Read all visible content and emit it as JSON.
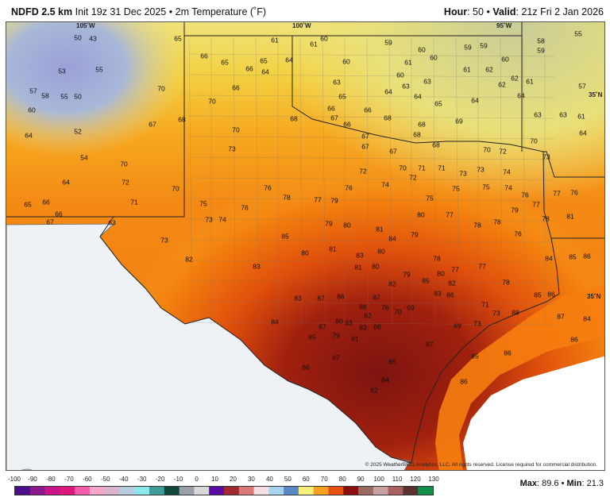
{
  "header": {
    "model": "NDFD 2.5 km",
    "init": "Init 19z 31 Dec 2025",
    "sep": "•",
    "field": "2m Temperature (˚F)",
    "hour_label": "Hour",
    "hour": "50",
    "valid_label": "Valid",
    "valid": "21z Fri 2 Jan 2026"
  },
  "map": {
    "longitude_labels": [
      "105˚W",
      "100˚W",
      "95˚W"
    ],
    "latitude_labels": [
      "35˚N",
      "35˚N"
    ],
    "temperature_labels": [
      "50",
      "43",
      "53",
      "55",
      "57",
      "58",
      "55",
      "50",
      "60",
      "52",
      "64",
      "54",
      "64",
      "65",
      "66",
      "66",
      "67",
      "63",
      "70",
      "72",
      "71",
      "70",
      "67",
      "68",
      "70",
      "65",
      "66",
      "65",
      "66",
      "65",
      "64",
      "64",
      "61",
      "61",
      "60",
      "59",
      "66",
      "70",
      "70",
      "73",
      "68",
      "63",
      "65",
      "60",
      "61",
      "60",
      "63",
      "63",
      "60",
      "60",
      "59",
      "59",
      "58",
      "59",
      "55",
      "60",
      "61",
      "62",
      "62",
      "62",
      "61",
      "57",
      "64",
      "64",
      "63",
      "63",
      "61",
      "64",
      "65",
      "64",
      "64",
      "66",
      "66",
      "67",
      "66",
      "68",
      "69",
      "68",
      "67",
      "67",
      "67",
      "68",
      "68",
      "70",
      "72",
      "70",
      "72",
      "70",
      "71",
      "71",
      "72",
      "73",
      "73",
      "74",
      "73",
      "76",
      "78",
      "77",
      "76",
      "74",
      "75",
      "75",
      "75",
      "74",
      "76",
      "77",
      "77",
      "76",
      "75",
      "73",
      "74",
      "76",
      "73",
      "79",
      "79",
      "80",
      "81",
      "84",
      "79",
      "80",
      "77",
      "78",
      "78",
      "79",
      "76",
      "78",
      "81",
      "82",
      "83",
      "85",
      "80",
      "81",
      "81",
      "80",
      "80",
      "78",
      "77",
      "77",
      "78",
      "85",
      "86",
      "85",
      "86",
      "84",
      "83",
      "82",
      "79",
      "76",
      "82",
      "83",
      "85",
      "80",
      "82",
      "83",
      "86",
      "86",
      "87",
      "86",
      "83",
      "81",
      "80",
      "87",
      "85",
      "83",
      "84",
      "79",
      "68",
      "70",
      "69",
      "69",
      "73",
      "71",
      "73",
      "88",
      "87",
      "85",
      "86",
      "87",
      "84",
      "86",
      "86",
      "87",
      "86",
      "87",
      "85",
      "84",
      "82"
    ],
    "logo_text": "WeatherBELL",
    "copyright": "© 2025 WeatherBELL Analytics, LLC. All rights reserved. License required for commercial distribution."
  },
  "colorbar": {
    "ticks": [
      "-100",
      "-90",
      "-80",
      "-70",
      "-60",
      "-50",
      "-40",
      "-30",
      "-20",
      "-10",
      "0",
      "10",
      "20",
      "30",
      "40",
      "50",
      "60",
      "70",
      "80",
      "90",
      "100",
      "110",
      "120",
      "130"
    ],
    "colors": [
      "#4a0e8a",
      "#8a1a8e",
      "#c8168a",
      "#e0177a",
      "#f25ca8",
      "#f5a6c9",
      "#dab3cc",
      "#b9cde0",
      "#8de8ee",
      "#3f9c98",
      "#10473a",
      "#9aa0a8",
      "#d8d8d8",
      "#5a0aa0",
      "#a02a30",
      "#d87878",
      "#f4e0e0",
      "#a8d4ee",
      "#5a88c8",
      "#f6f07a",
      "#f8a020",
      "#e85010",
      "#8a1010",
      "#9a6a60",
      "#c8a0a0",
      "#a86060",
      "#5a3030",
      "#10904a"
    ]
  },
  "stats": {
    "max_label": "Max",
    "max": "89.6",
    "min_label": "Min",
    "min": "21.3"
  }
}
